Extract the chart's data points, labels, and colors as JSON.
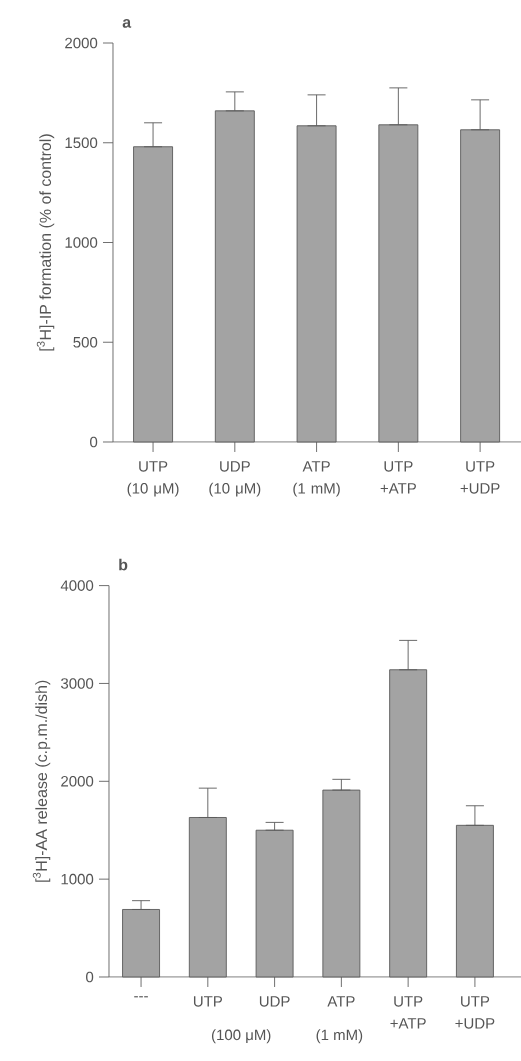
{
  "chart_data": [
    {
      "type": "bar",
      "title": "a",
      "ylabel": "[$^{3}$H]-IP formation (% of control)",
      "categories": [
        "UTP (10 μM)",
        "UDP (10 μM)",
        "ATP (1 mM)",
        "UTP +ATP",
        "UTP +UDP"
      ],
      "values": [
        1480,
        1660,
        1585,
        1590,
        1565
      ],
      "errors": [
        [
          1480,
          1600
        ],
        [
          1660,
          1755
        ],
        [
          1585,
          1740
        ],
        [
          1590,
          1775
        ],
        [
          1565,
          1715
        ]
      ],
      "color": "#a3a3a3",
      "ylim": [
        0,
        2000
      ],
      "yticks": [
        0,
        500,
        1000,
        1500,
        2000
      ]
    },
    {
      "type": "bar",
      "title": "b",
      "ylabel": "[$^{3}$H]-AA release (c.p.m./dish)",
      "categories": [
        "---",
        "UTP",
        "UDP",
        "ATP",
        "UTP +ATP",
        "UTP +UDP"
      ],
      "values": [
        690,
        1630,
        1500,
        1910,
        3140,
        1550
      ],
      "errors": [
        [
          690,
          780
        ],
        [
          1630,
          1930
        ],
        [
          1500,
          1580
        ],
        [
          1910,
          2020
        ],
        [
          3140,
          3440
        ],
        [
          1550,
          1750
        ]
      ],
      "color": "#a3a3a3",
      "ylim": [
        0,
        4000
      ],
      "yticks": [
        0,
        1000,
        2000,
        3000,
        4000
      ],
      "annotations": [
        "(100 μM)",
        "(1 mM)"
      ]
    }
  ]
}
